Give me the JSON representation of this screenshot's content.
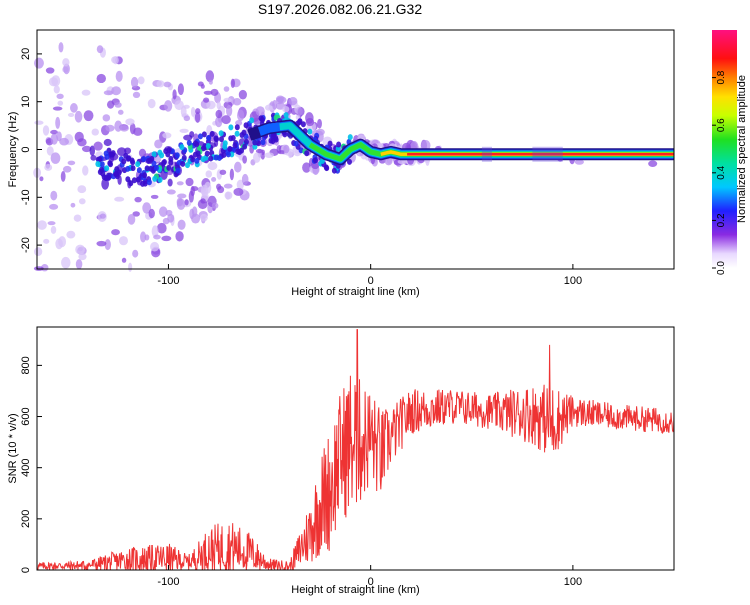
{
  "title": "S197.2026.082.06.21.G32",
  "chart_data": [
    {
      "type": "heatmap",
      "xlabel": "Height of straight line (km)",
      "ylabel": "Frequency (Hz)",
      "xlim": [
        -165,
        150
      ],
      "ylim": [
        -25,
        25
      ],
      "xticks": [
        -100,
        0,
        100
      ],
      "yticks": [
        -20,
        -10,
        0,
        10,
        20
      ],
      "colorbar": {
        "label": "Normalized spectral amplitude",
        "range": [
          0,
          1
        ],
        "ticks": [
          0.0,
          0.2,
          0.4,
          0.6,
          0.8
        ],
        "tick_labels": [
          "0.0",
          "0.2",
          "0.4",
          "0.6",
          "0.8"
        ]
      },
      "ridge": {
        "x": [
          -130,
          -115,
          -100,
          -85,
          -70,
          -60,
          -50,
          -40,
          -30,
          -22,
          -15,
          -10,
          -5,
          0,
          5,
          10,
          15,
          20,
          150
        ],
        "freq_hz": [
          -3,
          -5,
          -3,
          0,
          1.5,
          3,
          4.5,
          5,
          1,
          -1,
          -2,
          0,
          1,
          -0.5,
          -1,
          -0.5,
          -1,
          -1,
          -1
        ]
      }
    },
    {
      "type": "line",
      "xlabel": "Height of straight line (km)",
      "ylabel": "SNR (10 * v/v)",
      "xlim": [
        -165,
        150
      ],
      "ylim": [
        0,
        950
      ],
      "xticks": [
        -100,
        0,
        100
      ],
      "yticks": [
        0,
        200,
        400,
        600,
        800
      ],
      "series": [
        {
          "name": "SNR",
          "color": "#ee3333",
          "envelope_x": [
            -165,
            -140,
            -120,
            -100,
            -90,
            -80,
            -70,
            -60,
            -50,
            -40,
            -35,
            -30,
            -25,
            -20,
            -15,
            -10,
            -5,
            0,
            5,
            10,
            20,
            40,
            60,
            80,
            90,
            100,
            120,
            150
          ],
          "envelope_mid": [
            15,
            18,
            40,
            45,
            30,
            80,
            90,
            70,
            20,
            15,
            80,
            150,
            250,
            320,
            450,
            500,
            500,
            520,
            450,
            520,
            620,
            640,
            620,
            610,
            580,
            620,
            600,
            580
          ],
          "envelope_amp": [
            15,
            20,
            50,
            60,
            30,
            90,
            110,
            80,
            25,
            20,
            80,
            130,
            200,
            250,
            250,
            300,
            250,
            200,
            180,
            120,
            90,
            70,
            70,
            120,
            150,
            60,
            50,
            50
          ]
        }
      ]
    }
  ]
}
